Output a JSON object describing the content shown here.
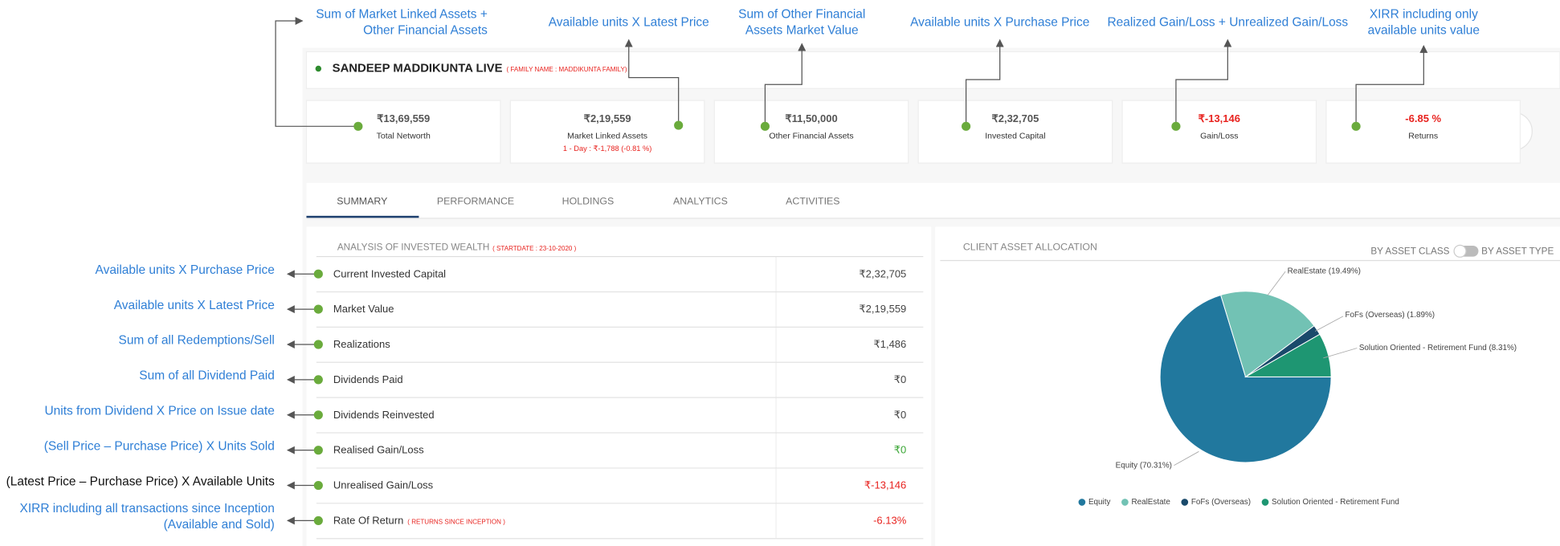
{
  "annotations_top": [
    {
      "lines": [
        "Sum of Market Linked Assets +",
        "Other Financial Assets"
      ]
    },
    {
      "lines": [
        "Available units X Latest Price"
      ]
    },
    {
      "lines": [
        "Sum of Other Financial",
        "Assets Market Value"
      ]
    },
    {
      "lines": [
        "Available units X Purchase Price"
      ]
    },
    {
      "lines": [
        "Realized Gain/Loss + Unrealized Gain/Loss"
      ]
    },
    {
      "lines": [
        "XIRR including only",
        "available units value"
      ]
    }
  ],
  "header": {
    "name": "SANDEEP MADDIKUNTA LIVE",
    "family": "( FAMILY NAME : MADDIKUNTA FAMILY)"
  },
  "cards": [
    {
      "value": "₹13,69,559",
      "label": "Total Networth",
      "color": "#555555"
    },
    {
      "value": "₹2,19,559",
      "label": "Market Linked Assets",
      "color": "#555555",
      "note": "1 - Day : ₹-1,788 (-0.81 %)"
    },
    {
      "value": "₹11,50,000",
      "label": "Other Financial Assets",
      "color": "#555555"
    },
    {
      "value": "₹2,32,705",
      "label": "Invested Capital",
      "color": "#555555"
    },
    {
      "value": "₹-13,146",
      "label": "Gain/Loss",
      "color": "#e8231f"
    },
    {
      "value": "-6.85 %",
      "label": "Returns",
      "color": "#e8231f"
    }
  ],
  "tabs": [
    "SUMMARY",
    "PERFORMANCE",
    "HOLDINGS",
    "ANALYTICS",
    "ACTIVITIES"
  ],
  "analysis": {
    "title": "ANALYSIS OF INVESTED WEALTH",
    "start": "( STARTDATE : 23-10-2020 )",
    "rows": [
      {
        "label": "Current Invested Capital",
        "value": "₹2,32,705",
        "color": "#444444",
        "annotation": [
          "Available units X Purchase Price"
        ],
        "annotation_color": "#2f7fd6"
      },
      {
        "label": "Market Value",
        "value": "₹2,19,559",
        "color": "#444444",
        "annotation": [
          "Available units X Latest Price"
        ],
        "annotation_color": "#2f7fd6"
      },
      {
        "label": "Realizations",
        "value": "₹1,486",
        "color": "#444444",
        "annotation": [
          "Sum of all Redemptions/Sell"
        ],
        "annotation_color": "#2f7fd6"
      },
      {
        "label": "Dividends Paid",
        "value": "₹0",
        "color": "#444444",
        "annotation": [
          "Sum of all Dividend Paid"
        ],
        "annotation_color": "#2f7fd6"
      },
      {
        "label": "Dividends Reinvested",
        "value": "₹0",
        "color": "#444444",
        "annotation": [
          "Units from Dividend X Price on Issue date"
        ],
        "annotation_color": "#2f7fd6"
      },
      {
        "label": "Realised Gain/Loss",
        "value": "₹0",
        "color": "#3aa635",
        "annotation": [
          "(Sell Price – Purchase Price)  X Units Sold"
        ],
        "annotation_color": "#2f7fd6"
      },
      {
        "label": "Unrealised Gain/Loss",
        "value": "₹-13,146",
        "color": "#e8231f",
        "annotation": [
          "(Latest Price – Purchase Price)  X Available Units"
        ],
        "annotation_color": "#111111"
      },
      {
        "label": "Rate Of Return",
        "note": "( RETURNS SINCE INCEPTION )",
        "value": "-6.13%",
        "color": "#e8231f",
        "annotation": [
          "XIRR including all transactions since Inception",
          "(Available and Sold)"
        ],
        "annotation_color": "#2f7fd6"
      }
    ]
  },
  "allocation": {
    "title": "CLIENT ASSET ALLOCATION",
    "toggle": [
      "BY ASSET CLASS",
      "BY ASSET TYPE"
    ],
    "chart": {
      "type": "pie",
      "categories": [
        "Equity",
        "RealEstate",
        "FoFs (Overseas)",
        "Solution Oriented - Retirement Fund"
      ],
      "values": [
        70.31,
        19.49,
        1.89,
        8.31
      ],
      "value_labels": [
        "Equity (70.31%)",
        "RealEstate (19.49%)",
        "FoFs (Overseas) (1.89%)",
        "Solution Oriented - Retirement Fund (8.31%)"
      ],
      "colors": [
        "#21789e",
        "#72c2b4",
        "#1a4a6b",
        "#1e9672"
      ]
    }
  }
}
